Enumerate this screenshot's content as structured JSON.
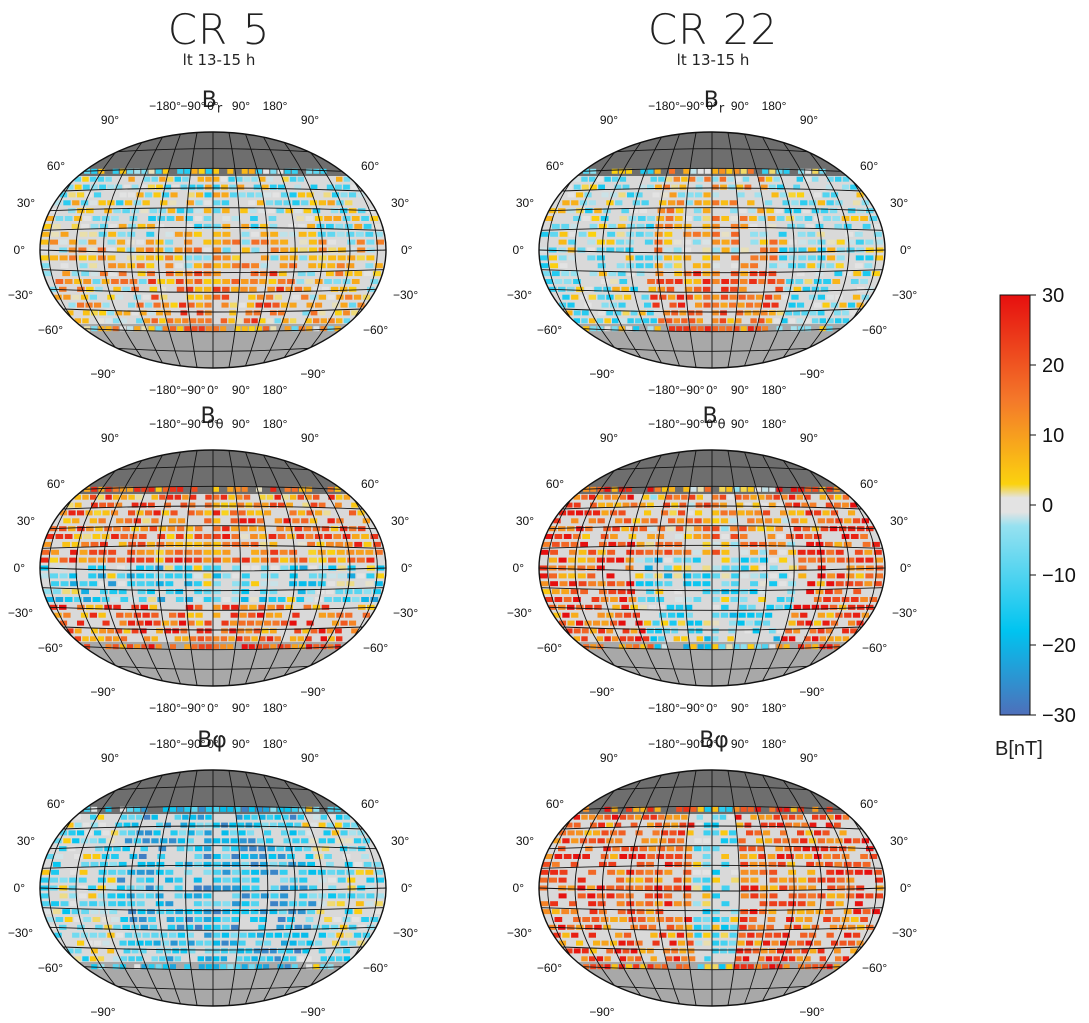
{
  "columns": [
    {
      "id": "cr5",
      "title": "CR 5",
      "subtitle": "lt 13-15 h"
    },
    {
      "id": "cr22",
      "title": "CR 22",
      "subtitle": "lt 13-15 h"
    }
  ],
  "rows": [
    {
      "id": "br",
      "symbol": "B",
      "subscript": "r"
    },
    {
      "id": "btheta",
      "symbol": "B",
      "subscript": "θ"
    },
    {
      "id": "bphi",
      "symbol": "Bφ",
      "subscript": ""
    }
  ],
  "axis_labels": {
    "longitude": [
      "−180°",
      "−90°",
      "0°",
      "90°",
      "180°"
    ],
    "pole_longitude": "90°",
    "latitude_left": [
      "60°",
      "30°",
      "0°",
      "−30°",
      "−60°"
    ],
    "latitude_right": [
      "60°",
      "30°",
      "0°",
      "−30°",
      "−60°"
    ],
    "south_pole_longitude": "−90°"
  },
  "colorbar": {
    "ticks": [
      "30",
      "20",
      "10",
      "0",
      "−10",
      "−20",
      "−30"
    ],
    "tick_values": [
      30,
      20,
      10,
      0,
      -10,
      -20,
      -30
    ],
    "range": [
      -30,
      30
    ],
    "unit": "B[nT]",
    "colors": [
      "#4e6fba",
      "#00c4f0",
      "#e3e3e3",
      "#fbd20f",
      "#f4782a",
      "#e60f0f"
    ]
  }
}
